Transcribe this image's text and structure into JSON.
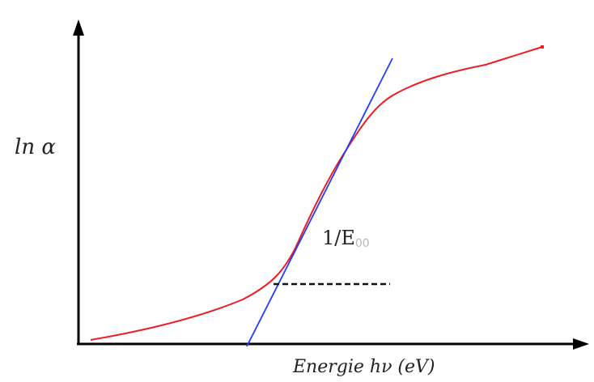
{
  "diagram": {
    "y_axis_label": "ln α",
    "x_axis_label": "Energie  hν (eV)",
    "slope_label": {
      "main": "1/E",
      "subscript": "00"
    },
    "colors": {
      "axis": "#000000",
      "curve": "#ee1c24",
      "tangent": "#1f3cff",
      "dashed": "#111111",
      "background": "#ffffff"
    }
  }
}
